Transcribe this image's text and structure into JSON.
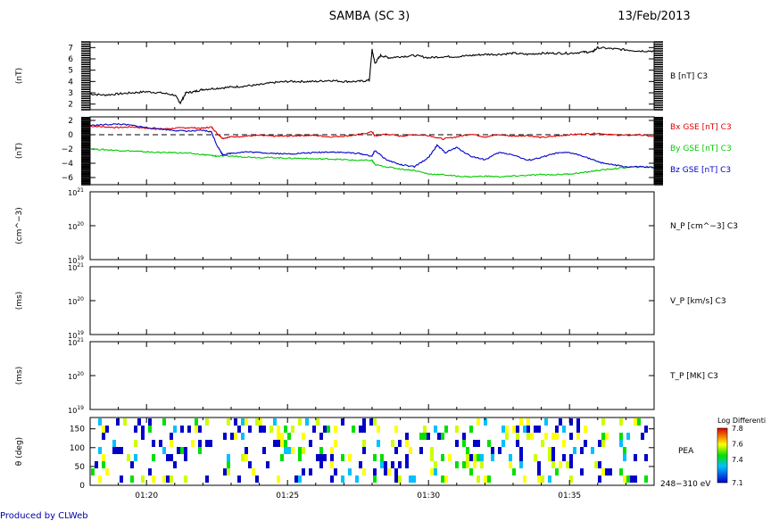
{
  "header": {
    "title": "SAMBA (SC 3)",
    "date": "13/Feb/2013"
  },
  "footer": {
    "produced_by": "Produced by CLWeb"
  },
  "colors": {
    "black": "#000000",
    "red": "#e00000",
    "green": "#00cc00",
    "blue": "#0000c8",
    "footer_text": "#0000aa"
  },
  "chart_data": [
    {
      "id": "B",
      "type": "line",
      "ylabel": "(nT)",
      "yticks": [
        "2",
        "3",
        "4",
        "5",
        "6",
        "7"
      ],
      "ylim": [
        1.5,
        7.5
      ],
      "xlim": [
        78,
        98
      ],
      "series": [
        {
          "name": "B [nT] C3",
          "color": "#000000",
          "x": [
            78,
            78.5,
            79,
            79.5,
            80,
            80.5,
            81,
            81.2,
            81.4,
            81.7,
            82,
            82.5,
            83,
            83.5,
            84,
            84.5,
            85,
            85.5,
            86,
            86.5,
            87,
            87.5,
            87.9,
            88.0,
            88.1,
            88.3,
            88.6,
            89,
            89.5,
            90,
            90.5,
            91,
            91.5,
            92,
            92.5,
            93,
            93.5,
            94,
            94.5,
            95,
            95.5,
            95.8,
            96,
            96.5,
            97,
            97.5,
            98
          ],
          "y": [
            2.9,
            2.8,
            2.9,
            3.0,
            3.1,
            3.0,
            2.8,
            2.1,
            3.0,
            3.1,
            3.3,
            3.4,
            3.5,
            3.6,
            3.7,
            3.9,
            4.0,
            4.0,
            4.0,
            4.1,
            4.0,
            4.0,
            4.1,
            6.8,
            5.6,
            6.3,
            6.1,
            6.2,
            6.3,
            6.1,
            6.2,
            6.2,
            6.3,
            6.4,
            6.4,
            6.5,
            6.4,
            6.5,
            6.5,
            6.5,
            6.6,
            6.6,
            7.0,
            6.9,
            6.8,
            6.7,
            6.7
          ]
        }
      ]
    },
    {
      "id": "BGSE",
      "type": "line",
      "ylabel": "(nT)",
      "yticks": [
        "2",
        "0",
        "−2",
        "−4",
        "−6"
      ],
      "ylim": [
        -7,
        2.5
      ],
      "xlim": [
        78,
        98
      ],
      "series": [
        {
          "name": "Bx GSE [nT] C3",
          "color": "#e00000",
          "x": [
            78,
            78.5,
            79,
            79.5,
            80,
            80.5,
            81,
            81.5,
            82,
            82.3,
            82.5,
            82.7,
            83,
            83.5,
            84,
            84.5,
            85,
            85.5,
            86,
            86.5,
            87,
            87.5,
            88,
            88.1,
            88.5,
            89,
            89.5,
            90,
            90.5,
            91,
            91.5,
            92,
            92.5,
            93,
            93.5,
            94,
            94.5,
            95,
            95.5,
            96,
            96.5,
            97,
            97.5,
            98
          ],
          "y": [
            1.2,
            1.1,
            1.0,
            1.1,
            0.9,
            0.8,
            0.9,
            1.0,
            0.9,
            1.1,
            0.2,
            -0.5,
            -0.3,
            -0.2,
            -0.1,
            -0.2,
            -0.2,
            -0.1,
            -0.1,
            -0.3,
            -0.2,
            0.0,
            0.4,
            -0.2,
            0.1,
            -0.2,
            0.0,
            -0.1,
            -0.6,
            -0.3,
            0.1,
            -0.3,
            0.0,
            -0.2,
            -0.1,
            -0.4,
            -0.2,
            0.0,
            0.1,
            0.2,
            0.0,
            -0.1,
            0.0,
            -0.3
          ]
        },
        {
          "name": "By GSE [nT] C3",
          "color": "#00cc00",
          "x": [
            78,
            78.5,
            79,
            79.5,
            80,
            80.5,
            81,
            81.5,
            82,
            82.3,
            82.5,
            83,
            83.5,
            84,
            84.5,
            85,
            85.5,
            86,
            86.5,
            87,
            87.5,
            88,
            88.1,
            88.5,
            89,
            89.5,
            90,
            90.5,
            91,
            91.5,
            92,
            92.5,
            93,
            93.5,
            94,
            94.5,
            95,
            95.5,
            96,
            96.5,
            97,
            97.5,
            98
          ],
          "y": [
            -2.0,
            -2.1,
            -2.2,
            -2.3,
            -2.4,
            -2.5,
            -2.5,
            -2.6,
            -2.8,
            -2.9,
            -3.0,
            -3.0,
            -3.1,
            -3.2,
            -3.2,
            -3.3,
            -3.3,
            -3.4,
            -3.4,
            -3.5,
            -3.6,
            -3.6,
            -4.2,
            -4.5,
            -4.8,
            -5.0,
            -5.5,
            -5.6,
            -5.8,
            -5.9,
            -5.8,
            -5.9,
            -5.8,
            -5.7,
            -5.6,
            -5.6,
            -5.5,
            -5.3,
            -5.0,
            -4.8,
            -4.6,
            -4.5,
            -4.6
          ]
        },
        {
          "name": "Bz GSE [nT] C3",
          "color": "#0000c8",
          "x": [
            78,
            78.5,
            79,
            79.5,
            80,
            80.5,
            81,
            81.5,
            82,
            82.3,
            82.5,
            82.7,
            83,
            83.5,
            84,
            84.5,
            85,
            85.5,
            86,
            86.5,
            87,
            87.5,
            88,
            88.1,
            88.5,
            89,
            89.5,
            90,
            90.3,
            90.6,
            91,
            91.5,
            92,
            92.5,
            93,
            93.5,
            94,
            94.5,
            95,
            95.5,
            96,
            96.5,
            97,
            97.5,
            98
          ],
          "y": [
            1.3,
            1.4,
            1.5,
            1.3,
            1.0,
            0.8,
            0.6,
            0.5,
            0.6,
            0.4,
            -1.5,
            -2.8,
            -2.6,
            -2.4,
            -2.5,
            -2.6,
            -2.7,
            -2.6,
            -2.5,
            -2.4,
            -2.5,
            -2.6,
            -3.0,
            -2.2,
            -3.5,
            -4.2,
            -4.5,
            -3.2,
            -1.5,
            -2.5,
            -1.8,
            -3.0,
            -3.5,
            -2.5,
            -2.8,
            -3.6,
            -3.2,
            -2.6,
            -2.5,
            -3.0,
            -3.8,
            -4.2,
            -4.5,
            -4.5,
            -4.6
          ]
        }
      ]
    },
    {
      "id": "NP",
      "type": "line",
      "ylabel": "(cm^−3)",
      "yticks": [
        "10^21",
        "10^20",
        "10^19"
      ],
      "series": [
        {
          "name": "N_P [cm^−3] C3",
          "values": []
        }
      ]
    },
    {
      "id": "VP",
      "type": "line",
      "ylabel": "(ms)",
      "yticks": [
        "10^21",
        "10^20",
        "10^19"
      ],
      "series": [
        {
          "name": "V_P [km/s] C3",
          "values": []
        }
      ]
    },
    {
      "id": "TP",
      "type": "line",
      "ylabel": "(ms)",
      "yticks": [
        "10^21",
        "10^20",
        "10^19"
      ],
      "series": [
        {
          "name": "T_P [MK] C3",
          "values": []
        }
      ]
    },
    {
      "id": "PEA",
      "type": "heatmap",
      "ylabel": "θ (deg)",
      "yticks": [
        "150",
        "100",
        "50",
        "0"
      ],
      "xlim": [
        78,
        98
      ],
      "ylim": [
        0,
        180
      ],
      "label": "PEA",
      "energy_label": "248−310 eV",
      "colorbar": {
        "title": "Log Differenti",
        "ticks": [
          "7.8",
          "7.6",
          "7.4",
          "7.1"
        ],
        "range": [
          7.1,
          7.8
        ]
      }
    }
  ],
  "xaxis": {
    "ticks": [
      "01:20",
      "01:25",
      "01:30",
      "01:35"
    ],
    "tick_minutes": [
      80,
      85,
      90,
      95
    ]
  }
}
